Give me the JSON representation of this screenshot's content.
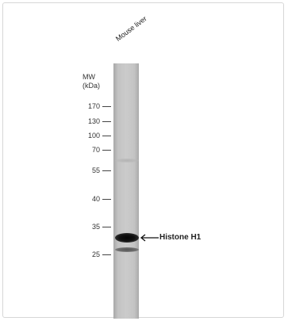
{
  "lane_label": "Mouse liver",
  "mw_title_line1": "MW",
  "mw_title_line2": "(kDa)",
  "markers": [
    {
      "label": "170"
    },
    {
      "label": "130"
    },
    {
      "label": "100"
    },
    {
      "label": "70"
    },
    {
      "label": "55"
    },
    {
      "label": "40"
    },
    {
      "label": "35"
    },
    {
      "label": "25"
    }
  ],
  "annotation": "Histone H1",
  "colors": {
    "lane": "#c3c3c3",
    "band": "#111111",
    "text": "#333333"
  }
}
